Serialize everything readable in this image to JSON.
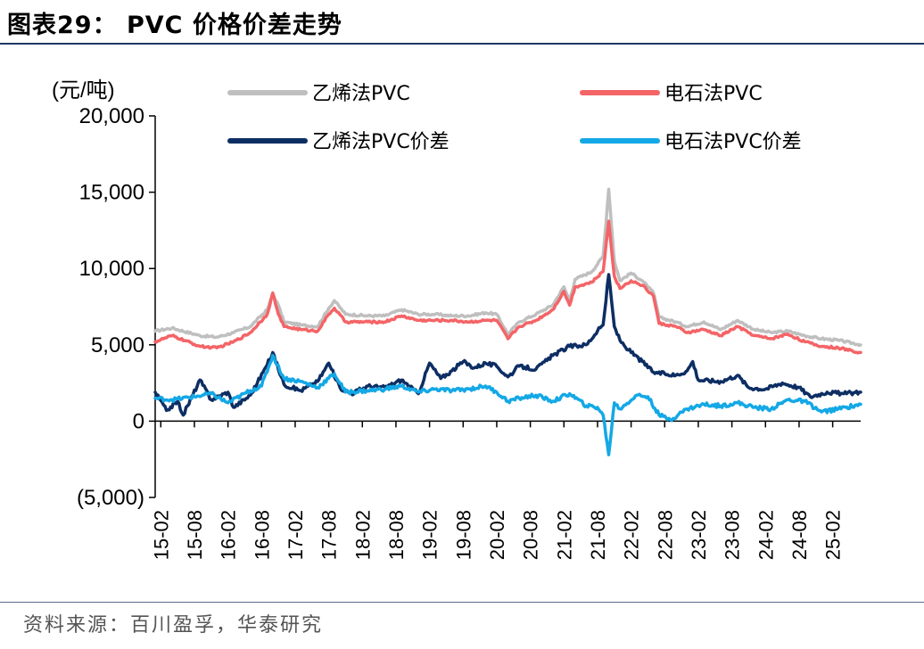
{
  "header": {
    "title": "图表29： PVC 价格价差走势"
  },
  "footer": {
    "source": "资料来源：百川盈孚，华泰研究"
  },
  "chart_data": {
    "type": "line",
    "title": "PVC 价格价差走势",
    "ylabel": "(元/吨)",
    "ylim": [
      -5000,
      20000
    ],
    "yticks": [
      -5000,
      0,
      5000,
      10000,
      15000,
      20000
    ],
    "ytick_labels": [
      "(5,000)",
      "0",
      "5,000",
      "10,000",
      "15,000",
      "20,000"
    ],
    "x_start": "2015-01",
    "x_end": "2025-07",
    "xtick_labels": [
      "15-02",
      "15-08",
      "16-02",
      "16-08",
      "17-02",
      "17-08",
      "18-02",
      "18-08",
      "19-02",
      "19-08",
      "20-02",
      "20-08",
      "21-02",
      "21-08",
      "22-02",
      "22-08",
      "23-02",
      "23-08",
      "24-02",
      "24-08",
      "25-02"
    ],
    "legend_position": "top",
    "series": [
      {
        "name": "乙烯法PVC",
        "color": "#bfbfbf",
        "points": [
          [
            "2015-01",
            5900
          ],
          [
            "2015-04",
            6100
          ],
          [
            "2015-09",
            5600
          ],
          [
            "2015-12",
            5500
          ],
          [
            "2016-03",
            5800
          ],
          [
            "2016-06",
            6200
          ],
          [
            "2016-09",
            7300
          ],
          [
            "2016-10",
            8300
          ],
          [
            "2016-11",
            7600
          ],
          [
            "2016-12",
            6500
          ],
          [
            "2017-03",
            6300
          ],
          [
            "2017-06",
            6200
          ],
          [
            "2017-08",
            7400
          ],
          [
            "2017-09",
            7900
          ],
          [
            "2017-11",
            7000
          ],
          [
            "2018-03",
            6900
          ],
          [
            "2018-06",
            6900
          ],
          [
            "2018-09",
            7300
          ],
          [
            "2018-12",
            7000
          ],
          [
            "2019-03",
            7000
          ],
          [
            "2019-06",
            6900
          ],
          [
            "2019-09",
            6900
          ],
          [
            "2019-12",
            7100
          ],
          [
            "2020-02",
            7000
          ],
          [
            "2020-04",
            5700
          ],
          [
            "2020-06",
            6500
          ],
          [
            "2020-09",
            7000
          ],
          [
            "2020-12",
            7600
          ],
          [
            "2021-02",
            8800
          ],
          [
            "2021-03",
            7900
          ],
          [
            "2021-04",
            9300
          ],
          [
            "2021-07",
            9800
          ],
          [
            "2021-09",
            10800
          ],
          [
            "2021-10",
            15200
          ],
          [
            "2021-11",
            10500
          ],
          [
            "2021-12",
            9200
          ],
          [
            "2022-02",
            9700
          ],
          [
            "2022-04",
            9200
          ],
          [
            "2022-06",
            8400
          ],
          [
            "2022-07",
            6800
          ],
          [
            "2022-10",
            6500
          ],
          [
            "2022-12",
            6200
          ],
          [
            "2023-03",
            6500
          ],
          [
            "2023-06",
            6000
          ],
          [
            "2023-09",
            6600
          ],
          [
            "2023-12",
            6000
          ],
          [
            "2024-03",
            5800
          ],
          [
            "2024-06",
            5900
          ],
          [
            "2024-09",
            5600
          ],
          [
            "2024-12",
            5400
          ],
          [
            "2025-03",
            5300
          ],
          [
            "2025-07",
            5000
          ]
        ]
      },
      {
        "name": "电石法PVC",
        "color": "#f46467",
        "points": [
          [
            "2015-01",
            5200
          ],
          [
            "2015-04",
            5600
          ],
          [
            "2015-09",
            4900
          ],
          [
            "2015-12",
            4800
          ],
          [
            "2016-03",
            5200
          ],
          [
            "2016-06",
            5800
          ],
          [
            "2016-09",
            7000
          ],
          [
            "2016-10",
            8400
          ],
          [
            "2016-11",
            7000
          ],
          [
            "2016-12",
            6200
          ],
          [
            "2017-03",
            6000
          ],
          [
            "2017-06",
            5900
          ],
          [
            "2017-08",
            7000
          ],
          [
            "2017-09",
            7400
          ],
          [
            "2017-11",
            6500
          ],
          [
            "2018-03",
            6500
          ],
          [
            "2018-06",
            6500
          ],
          [
            "2018-09",
            6900
          ],
          [
            "2018-12",
            6600
          ],
          [
            "2019-03",
            6600
          ],
          [
            "2019-06",
            6600
          ],
          [
            "2019-09",
            6500
          ],
          [
            "2019-12",
            6600
          ],
          [
            "2020-02",
            6600
          ],
          [
            "2020-04",
            5400
          ],
          [
            "2020-06",
            6200
          ],
          [
            "2020-09",
            6600
          ],
          [
            "2020-12",
            7300
          ],
          [
            "2021-02",
            8500
          ],
          [
            "2021-03",
            7600
          ],
          [
            "2021-04",
            8800
          ],
          [
            "2021-07",
            9100
          ],
          [
            "2021-09",
            9800
          ],
          [
            "2021-10",
            13100
          ],
          [
            "2021-11",
            9500
          ],
          [
            "2021-12",
            8700
          ],
          [
            "2022-02",
            9200
          ],
          [
            "2022-04",
            8900
          ],
          [
            "2022-06",
            8200
          ],
          [
            "2022-07",
            6400
          ],
          [
            "2022-10",
            6200
          ],
          [
            "2022-12",
            5800
          ],
          [
            "2023-03",
            6000
          ],
          [
            "2023-06",
            5600
          ],
          [
            "2023-09",
            6200
          ],
          [
            "2023-12",
            5600
          ],
          [
            "2024-03",
            5400
          ],
          [
            "2024-06",
            5700
          ],
          [
            "2024-09",
            5200
          ],
          [
            "2024-12",
            4900
          ],
          [
            "2025-03",
            4800
          ],
          [
            "2025-07",
            4500
          ]
        ]
      },
      {
        "name": "乙烯法PVC价差",
        "color": "#0d2e63",
        "points": [
          [
            "2015-01",
            1900
          ],
          [
            "2015-03",
            700
          ],
          [
            "2015-05",
            1300
          ],
          [
            "2015-06",
            400
          ],
          [
            "2015-09",
            2700
          ],
          [
            "2015-11",
            1400
          ],
          [
            "2016-02",
            1900
          ],
          [
            "2016-03",
            900
          ],
          [
            "2016-06",
            1700
          ],
          [
            "2016-09",
            3700
          ],
          [
            "2016-10",
            4500
          ],
          [
            "2016-12",
            2400
          ],
          [
            "2017-03",
            2000
          ],
          [
            "2017-06",
            2600
          ],
          [
            "2017-08",
            3800
          ],
          [
            "2017-10",
            2200
          ],
          [
            "2017-12",
            1800
          ],
          [
            "2018-03",
            2300
          ],
          [
            "2018-06",
            2200
          ],
          [
            "2018-09",
            2700
          ],
          [
            "2018-12",
            1800
          ],
          [
            "2019-02",
            3800
          ],
          [
            "2019-04",
            2800
          ],
          [
            "2019-06",
            3300
          ],
          [
            "2019-08",
            3900
          ],
          [
            "2019-10",
            3500
          ],
          [
            "2019-12",
            3800
          ],
          [
            "2020-02",
            3600
          ],
          [
            "2020-04",
            2900
          ],
          [
            "2020-06",
            3600
          ],
          [
            "2020-09",
            3400
          ],
          [
            "2020-12",
            4300
          ],
          [
            "2021-03",
            4900
          ],
          [
            "2021-06",
            5000
          ],
          [
            "2021-08",
            5900
          ],
          [
            "2021-09",
            6300
          ],
          [
            "2021-10",
            9600
          ],
          [
            "2021-11",
            6200
          ],
          [
            "2021-12",
            5300
          ],
          [
            "2022-02",
            4500
          ],
          [
            "2022-04",
            3900
          ],
          [
            "2022-06",
            3200
          ],
          [
            "2022-08",
            3100
          ],
          [
            "2022-10",
            3000
          ],
          [
            "2022-12",
            3300
          ],
          [
            "2023-01",
            3900
          ],
          [
            "2023-02",
            2700
          ],
          [
            "2023-06",
            2600
          ],
          [
            "2023-09",
            3000
          ],
          [
            "2023-11",
            2200
          ],
          [
            "2024-02",
            2100
          ],
          [
            "2024-05",
            2500
          ],
          [
            "2024-08",
            2200
          ],
          [
            "2024-10",
            1600
          ],
          [
            "2025-01",
            1900
          ],
          [
            "2025-04",
            1800
          ],
          [
            "2025-07",
            1900
          ]
        ]
      },
      {
        "name": "电石法PVC价差",
        "color": "#14a8e6",
        "points": [
          [
            "2015-01",
            1500
          ],
          [
            "2015-04",
            1400
          ],
          [
            "2015-08",
            1600
          ],
          [
            "2015-11",
            1800
          ],
          [
            "2016-02",
            1200
          ],
          [
            "2016-06",
            2000
          ],
          [
            "2016-08",
            2300
          ],
          [
            "2016-10",
            4300
          ],
          [
            "2016-12",
            2800
          ],
          [
            "2017-03",
            2600
          ],
          [
            "2017-06",
            2200
          ],
          [
            "2017-09",
            3100
          ],
          [
            "2017-11",
            1900
          ],
          [
            "2018-03",
            2000
          ],
          [
            "2018-06",
            2100
          ],
          [
            "2018-09",
            2300
          ],
          [
            "2018-12",
            1900
          ],
          [
            "2019-03",
            2100
          ],
          [
            "2019-06",
            2000
          ],
          [
            "2019-09",
            2100
          ],
          [
            "2019-12",
            2300
          ],
          [
            "2020-02",
            1900
          ],
          [
            "2020-04",
            1300
          ],
          [
            "2020-06",
            1500
          ],
          [
            "2020-09",
            1700
          ],
          [
            "2020-12",
            1300
          ],
          [
            "2021-03",
            1800
          ],
          [
            "2021-06",
            1000
          ],
          [
            "2021-08",
            900
          ],
          [
            "2021-09",
            400
          ],
          [
            "2021-10",
            -2200
          ],
          [
            "2021-11",
            1200
          ],
          [
            "2021-12",
            800
          ],
          [
            "2022-03",
            1700
          ],
          [
            "2022-05",
            1600
          ],
          [
            "2022-07",
            400
          ],
          [
            "2022-09",
            100
          ],
          [
            "2022-12",
            800
          ],
          [
            "2023-03",
            1100
          ],
          [
            "2023-06",
            1000
          ],
          [
            "2023-09",
            1200
          ],
          [
            "2023-12",
            900
          ],
          [
            "2024-03",
            800
          ],
          [
            "2024-06",
            1400
          ],
          [
            "2024-09",
            1300
          ],
          [
            "2024-12",
            600
          ],
          [
            "2025-03",
            800
          ],
          [
            "2025-07",
            1100
          ]
        ]
      }
    ]
  }
}
